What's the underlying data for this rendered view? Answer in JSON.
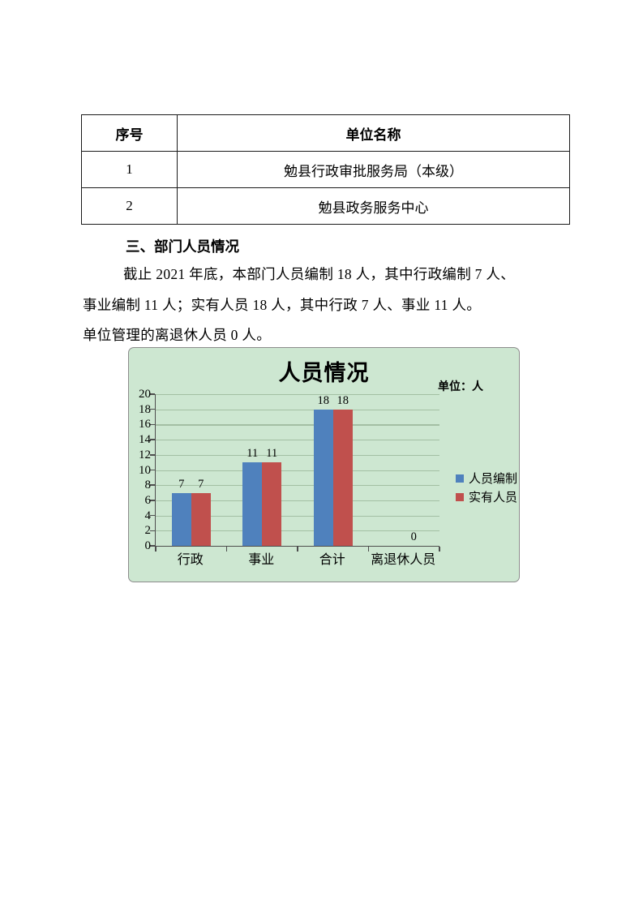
{
  "table": {
    "headers": [
      "序号",
      "单位名称"
    ],
    "rows": [
      {
        "no": "1",
        "name": "勉县行政审批服务局（本级）"
      },
      {
        "no": "2",
        "name": "勉县政务服务中心"
      }
    ]
  },
  "section": {
    "heading": "三、部门人员情况",
    "paragraph_lines": [
      "截止 2021 年底，本部门人员编制 18 人，其中行政编制 7 人、",
      "事业编制 11 人；实有人员 18 人，其中行政 7 人、事业 11 人。",
      "单位管理的离退休人员 0 人。"
    ]
  },
  "chart_data": {
    "type": "bar",
    "title": "人员情况",
    "unit_label": "单位：人",
    "categories": [
      "行政",
      "事业",
      "合计",
      "离退休人员"
    ],
    "series": [
      {
        "name": "人员编制",
        "color": "#4f81bd",
        "values": [
          7,
          11,
          18,
          0
        ]
      },
      {
        "name": "实有人员",
        "color": "#c0504d",
        "values": [
          7,
          11,
          18,
          0
        ]
      }
    ],
    "ylim": [
      0,
      20
    ],
    "ytick_step": 2,
    "grid": true,
    "legend_position": "right",
    "background_color": "#cde7d1",
    "gridline_color": "#a3bfa3",
    "axis_color": "#4d4d4d"
  }
}
